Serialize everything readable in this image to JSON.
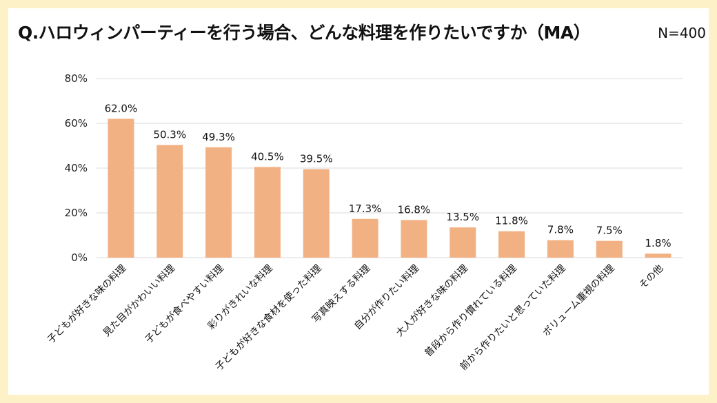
{
  "header": {
    "title": "Q.ハロウィンパーティーを行う場合、どんな料理を作りたいですか（MA）",
    "n_label": "N=400"
  },
  "colors": {
    "background_border": "#fdf1c8",
    "bar": "#f2b183",
    "grid": "#d9d9d9"
  },
  "chart_data": {
    "type": "bar",
    "title": "Q.ハロウィンパーティーを行う場合、どんな料理を作りたいですか（MA）",
    "ylim": [
      0,
      80
    ],
    "yticks": [
      "0%",
      "20%",
      "40%",
      "60%",
      "80%"
    ],
    "ytick_values": [
      0,
      20,
      40,
      60,
      80
    ],
    "grid": true,
    "categories": [
      "子どもが好きな味の料理",
      "見た目がかわいい料理",
      "子どもが食べやすい料理",
      "彩りがきれいな料理",
      "子どもが好きな食材を使った料理",
      "写真映えする料理",
      "自分が作りたい料理",
      "大人が好きな味の料理",
      "普段から作り慣れている料理",
      "前から作りたいと思っていた料理",
      "ボリューム重視の料理",
      "その他"
    ],
    "values": [
      62.0,
      50.3,
      49.3,
      40.5,
      39.5,
      17.3,
      16.8,
      13.5,
      11.8,
      7.8,
      7.5,
      1.8
    ],
    "value_labels": [
      "62.0%",
      "50.3%",
      "49.3%",
      "40.5%",
      "39.5%",
      "17.3%",
      "16.8%",
      "13.5%",
      "11.8%",
      "7.8%",
      "7.5%",
      "1.8%"
    ]
  }
}
